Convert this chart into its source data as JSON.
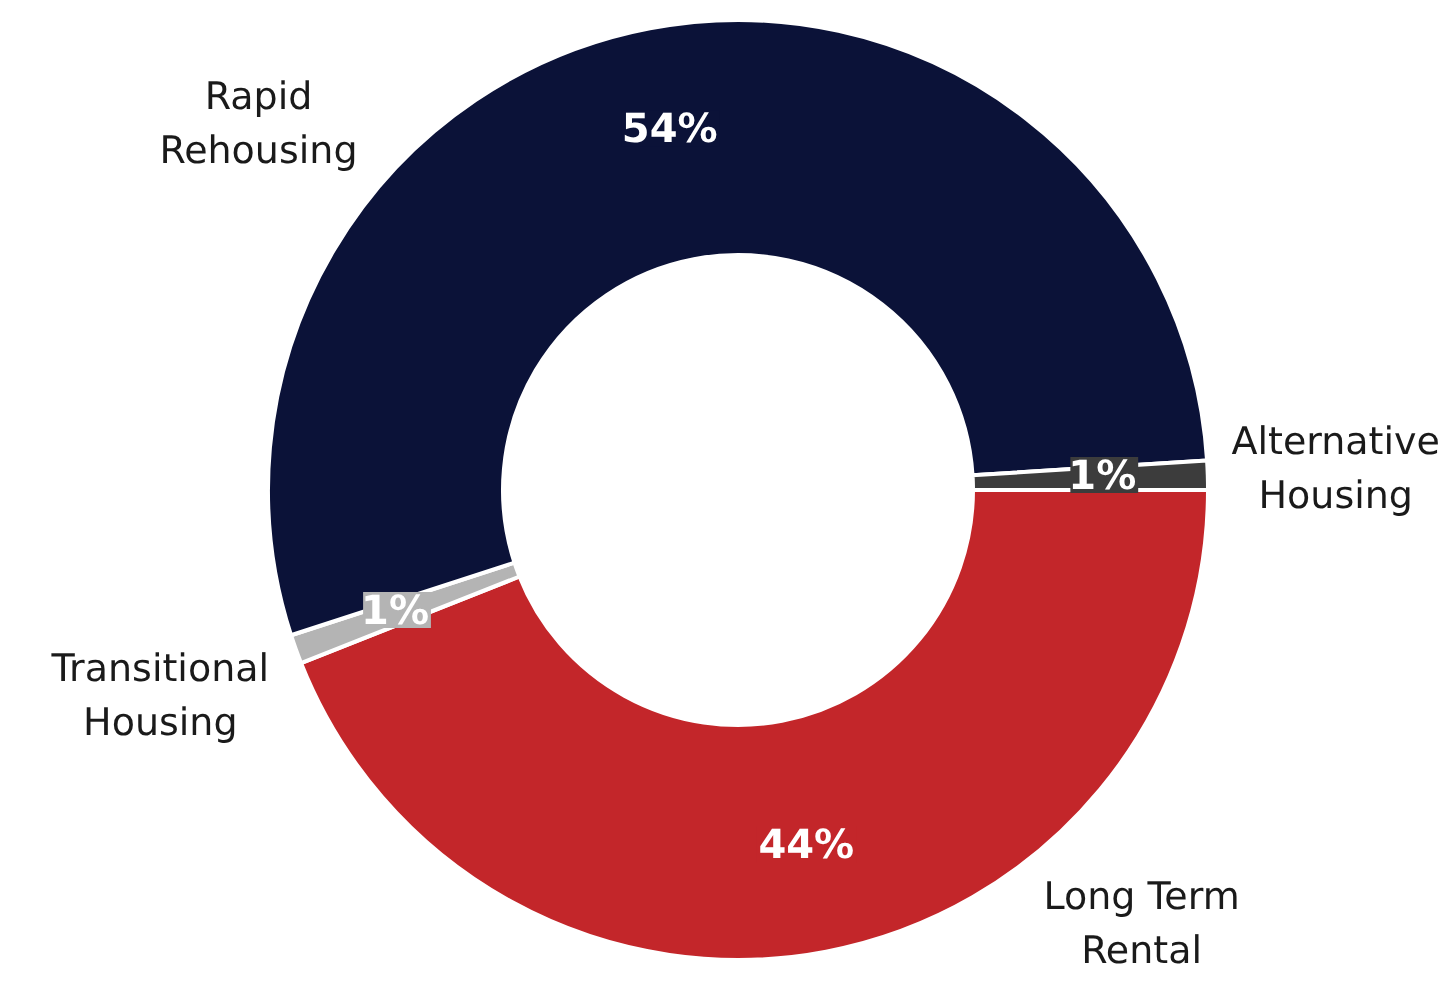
{
  "chart_data": {
    "type": "donut",
    "categories": [
      "Long Term Rental",
      "Transitional Housing",
      "Rapid Rehousing",
      "Alternative Housing"
    ],
    "values": [
      44,
      1,
      54,
      1
    ],
    "colors": [
      "#c3262a",
      "#b4b4b4",
      "#0b1238",
      "#3c3c3c"
    ],
    "value_labels": [
      "44%",
      "1%",
      "54%",
      "1%"
    ]
  }
}
